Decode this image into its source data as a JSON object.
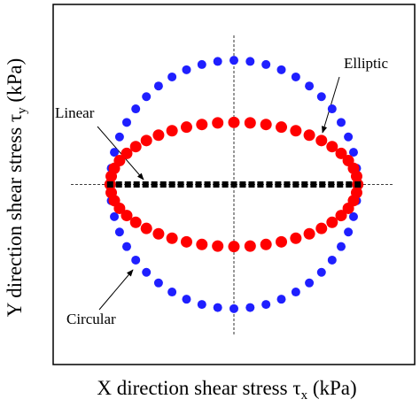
{
  "chart_data": {
    "type": "scatter",
    "xlabel": [
      "X direction shear stress τ",
      "x",
      " (kPa)"
    ],
    "ylabel": [
      "Y direction shear stress τ",
      "y",
      " (kPa)"
    ],
    "xlim": [
      -1.46,
      1.46
    ],
    "ylim": [
      -1.45,
      1.45
    ],
    "series": [
      {
        "name": "Circular",
        "color": "#1f1fff",
        "marker": "circle",
        "x": [
          1,
          0.991,
          0.966,
          0.924,
          0.866,
          0.793,
          0.707,
          0.609,
          0.5,
          0.383,
          0.259,
          0.131,
          0,
          -0.131,
          -0.259,
          -0.383,
          -0.5,
          -0.609,
          -0.707,
          -0.793,
          -0.866,
          -0.924,
          -0.966,
          -0.991,
          -1,
          -0.991,
          -0.966,
          -0.924,
          -0.866,
          -0.793,
          -0.707,
          -0.609,
          -0.5,
          -0.383,
          -0.259,
          -0.131,
          0,
          0.131,
          0.259,
          0.383,
          0.5,
          0.609,
          0.707,
          0.793,
          0.866,
          0.924,
          0.966,
          0.991
        ],
        "y": [
          0,
          0.131,
          0.259,
          0.383,
          0.5,
          0.609,
          0.707,
          0.793,
          0.866,
          0.924,
          0.966,
          0.991,
          1,
          0.991,
          0.966,
          0.924,
          0.866,
          0.793,
          0.707,
          0.609,
          0.5,
          0.383,
          0.259,
          0.131,
          0,
          -0.131,
          -0.259,
          -0.383,
          -0.5,
          -0.609,
          -0.707,
          -0.793,
          -0.866,
          -0.924,
          -0.966,
          -0.991,
          -1,
          -0.991,
          -0.966,
          -0.924,
          -0.866,
          -0.793,
          -0.707,
          -0.609,
          -0.5,
          -0.383,
          -0.259,
          -0.131
        ]
      },
      {
        "name": "Elliptic",
        "color": "#ff0000",
        "marker": "circle",
        "x": [
          1,
          0.991,
          0.966,
          0.924,
          0.866,
          0.793,
          0.707,
          0.609,
          0.5,
          0.383,
          0.259,
          0.131,
          0,
          -0.131,
          -0.259,
          -0.383,
          -0.5,
          -0.609,
          -0.707,
          -0.793,
          -0.866,
          -0.924,
          -0.966,
          -0.991,
          -1,
          -0.991,
          -0.966,
          -0.924,
          -0.866,
          -0.793,
          -0.707,
          -0.609,
          -0.5,
          -0.383,
          -0.259,
          -0.131,
          0,
          0.131,
          0.259,
          0.383,
          0.5,
          0.609,
          0.707,
          0.793,
          0.866,
          0.924,
          0.966,
          0.991
        ],
        "y": [
          0,
          0.066,
          0.13,
          0.192,
          0.25,
          0.305,
          0.354,
          0.397,
          0.433,
          0.462,
          0.483,
          0.496,
          0.5,
          0.496,
          0.483,
          0.462,
          0.433,
          0.397,
          0.354,
          0.305,
          0.25,
          0.192,
          0.13,
          0.066,
          0,
          -0.066,
          -0.13,
          -0.192,
          -0.25,
          -0.305,
          -0.354,
          -0.397,
          -0.433,
          -0.462,
          -0.483,
          -0.496,
          -0.5,
          -0.496,
          -0.483,
          -0.462,
          -0.433,
          -0.397,
          -0.354,
          -0.305,
          -0.25,
          -0.192,
          -0.13,
          -0.066
        ]
      },
      {
        "name": "Linear",
        "color": "#000000",
        "marker": "square",
        "x": [
          -1,
          -0.929,
          -0.857,
          -0.786,
          -0.714,
          -0.643,
          -0.571,
          -0.5,
          -0.429,
          -0.357,
          -0.286,
          -0.214,
          -0.143,
          -0.071,
          0,
          0.071,
          0.143,
          0.214,
          0.286,
          0.357,
          0.429,
          0.5,
          0.571,
          0.643,
          0.714,
          0.786,
          0.857,
          0.929,
          1
        ],
        "y": [
          0,
          0,
          0,
          0,
          0,
          0,
          0,
          0,
          0,
          0,
          0,
          0,
          0,
          0,
          0,
          0,
          0,
          0,
          0,
          0,
          0,
          0,
          0,
          0,
          0,
          0,
          0,
          0,
          0
        ]
      }
    ]
  }
}
